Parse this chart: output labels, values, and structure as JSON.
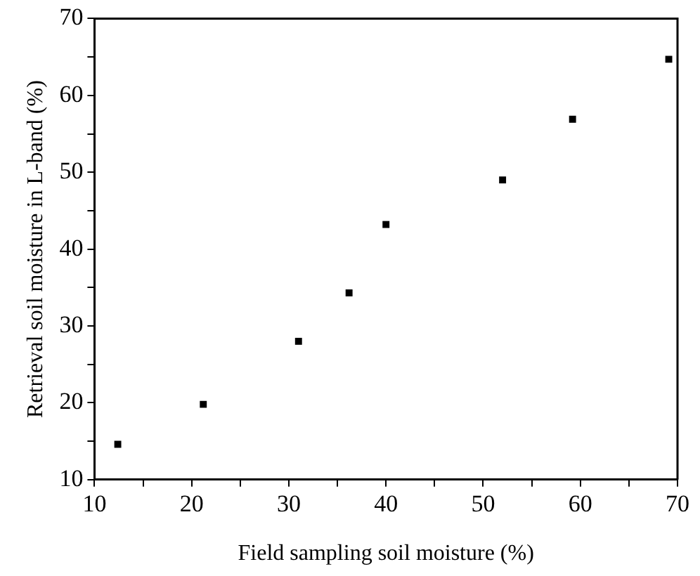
{
  "chart_data": {
    "type": "scatter",
    "xlabel": "Field sampling soil moisture (%)",
    "ylabel": "Retrieval soil moisture in L-band (%)",
    "x": [
      12.4,
      21.2,
      31.0,
      36.2,
      40.0,
      52.0,
      59.2,
      69.1
    ],
    "values": [
      14.6,
      19.8,
      28.0,
      34.3,
      43.2,
      49.0,
      56.9,
      64.7
    ],
    "color": "#000000",
    "marker": "square",
    "xlim": [
      10,
      70
    ],
    "ylim": [
      10,
      70
    ],
    "xticks": [
      10,
      {
        "value": 15,
        "label": null
      },
      20,
      {
        "value": 25,
        "label": null
      },
      30,
      {
        "value": 35,
        "label": null
      },
      40,
      {
        "value": 45,
        "label": null
      },
      50,
      {
        "value": 55,
        "label": null
      },
      60,
      {
        "value": 65,
        "label": null
      },
      70
    ],
    "yticks": [
      10,
      {
        "value": 15,
        "label": null
      },
      20,
      {
        "value": 25,
        "label": null
      },
      30,
      {
        "value": 35,
        "label": null
      },
      40,
      {
        "value": 45,
        "label": null
      },
      50,
      {
        "value": 55,
        "label": null
      },
      60,
      {
        "value": 65,
        "label": null
      },
      70
    ],
    "grid": false,
    "legend": false
  }
}
